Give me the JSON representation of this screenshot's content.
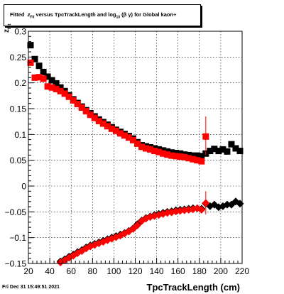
{
  "title": {
    "prefix": "Fitted",
    "variable": "z",
    "variable_sub": "Fit",
    "middle": "versus TpcTrackLength and log",
    "log_sub": "10",
    "suffix": "(β  γ) for Global kaon+"
  },
  "footer": "Fri Dec 31 15:49:51 2021",
  "chart_data": {
    "type": "scatter",
    "xlabel": "TpcTrackLength (cm)",
    "ylabel": "z",
    "ylabel_sub": "Fit",
    "xlim": [
      20,
      220
    ],
    "ylim": [
      -0.15,
      0.3
    ],
    "xticks": [
      20,
      40,
      60,
      80,
      100,
      120,
      140,
      160,
      180,
      200,
      220
    ],
    "yticks": [
      -0.15,
      -0.1,
      -0.05,
      0,
      0.05,
      0.1,
      0.15,
      0.2,
      0.25,
      0.3
    ],
    "ytick_labels": [
      "−0.15",
      "−0.1",
      "−0.05",
      "0",
      "0.05",
      "0.1",
      "0.15",
      "0.2",
      "0.25",
      "0.3"
    ],
    "grid": true,
    "colors": {
      "black_series": "#000000",
      "red_series": "#ff0000"
    },
    "series": [
      {
        "marker": "square",
        "color": "#000000",
        "points": [
          [
            22,
            0.273
          ],
          [
            26,
            0.246
          ],
          [
            30,
            0.233
          ],
          [
            34,
            0.221
          ],
          [
            38,
            0.212
          ],
          [
            42,
            0.205
          ],
          [
            46,
            0.199
          ],
          [
            50,
            0.191
          ],
          [
            54,
            0.184
          ],
          [
            58,
            0.176
          ],
          [
            62,
            0.168
          ],
          [
            66,
            0.161
          ],
          [
            70,
            0.154
          ],
          [
            74,
            0.147
          ],
          [
            78,
            0.141
          ],
          [
            82,
            0.135
          ],
          [
            86,
            0.129
          ],
          [
            90,
            0.124
          ],
          [
            94,
            0.119
          ],
          [
            98,
            0.114
          ],
          [
            102,
            0.109
          ],
          [
            106,
            0.105
          ],
          [
            110,
            0.101
          ],
          [
            114,
            0.097
          ],
          [
            118,
            0.092
          ],
          [
            122,
            0.085
          ],
          [
            126,
            0.079
          ],
          [
            130,
            0.077
          ],
          [
            134,
            0.075
          ],
          [
            138,
            0.073
          ],
          [
            142,
            0.071
          ],
          [
            146,
            0.069
          ],
          [
            150,
            0.067
          ],
          [
            154,
            0.065
          ],
          [
            158,
            0.064
          ],
          [
            162,
            0.063
          ],
          [
            166,
            0.061
          ],
          [
            170,
            0.06
          ],
          [
            174,
            0.059
          ],
          [
            178,
            0.059
          ],
          [
            182,
            0.058
          ],
          [
            186,
            0.063
          ],
          [
            190,
            0.068
          ],
          [
            194,
            0.072
          ],
          [
            198,
            0.068
          ],
          [
            202,
            0.071
          ],
          [
            206,
            0.067
          ],
          [
            210,
            0.081
          ],
          [
            214,
            0.073
          ],
          [
            218,
            0.068
          ]
        ]
      },
      {
        "marker": "square",
        "color": "#ff0000",
        "points": [
          [
            22,
            0.239
          ],
          [
            26,
            0.21
          ],
          [
            30,
            0.211
          ],
          [
            34,
            0.208
          ],
          [
            38,
            0.193
          ],
          [
            42,
            0.191
          ],
          [
            46,
            0.188
          ],
          [
            50,
            0.184
          ],
          [
            54,
            0.179
          ],
          [
            58,
            0.173
          ],
          [
            62,
            0.166
          ],
          [
            66,
            0.159
          ],
          [
            70,
            0.152
          ],
          [
            74,
            0.145
          ],
          [
            78,
            0.138
          ],
          [
            82,
            0.132
          ],
          [
            86,
            0.126
          ],
          [
            90,
            0.121
          ],
          [
            94,
            0.116
          ],
          [
            98,
            0.111
          ],
          [
            102,
            0.107
          ],
          [
            106,
            0.102
          ],
          [
            110,
            0.098
          ],
          [
            114,
            0.094
          ],
          [
            118,
            0.089
          ],
          [
            122,
            0.082
          ],
          [
            126,
            0.076
          ],
          [
            130,
            0.073
          ],
          [
            134,
            0.071
          ],
          [
            138,
            0.068
          ],
          [
            142,
            0.066
          ],
          [
            146,
            0.063
          ],
          [
            150,
            0.061
          ],
          [
            154,
            0.059
          ],
          [
            158,
            0.058
          ],
          [
            162,
            0.057
          ],
          [
            166,
            0.056
          ],
          [
            170,
            0.054
          ],
          [
            174,
            0.052
          ],
          [
            178,
            0.05
          ],
          [
            182,
            0.048
          ],
          [
            186,
            0.096
          ]
        ],
        "error_point": {
          "x": 186,
          "y": 0.096,
          "ylo": 0.06,
          "yhi": 0.135
        }
      },
      {
        "marker": "diamond",
        "color": "#000000",
        "points": [
          [
            50,
            -0.146
          ],
          [
            54,
            -0.142
          ],
          [
            58,
            -0.137
          ],
          [
            62,
            -0.133
          ],
          [
            66,
            -0.128
          ],
          [
            70,
            -0.124
          ],
          [
            74,
            -0.119
          ],
          [
            78,
            -0.115
          ],
          [
            82,
            -0.112
          ],
          [
            86,
            -0.109
          ],
          [
            90,
            -0.106
          ],
          [
            94,
            -0.103
          ],
          [
            98,
            -0.1
          ],
          [
            102,
            -0.097
          ],
          [
            106,
            -0.094
          ],
          [
            110,
            -0.091
          ],
          [
            114,
            -0.087
          ],
          [
            118,
            -0.082
          ],
          [
            122,
            -0.074
          ],
          [
            126,
            -0.067
          ],
          [
            130,
            -0.062
          ],
          [
            134,
            -0.059
          ],
          [
            138,
            -0.056
          ],
          [
            142,
            -0.054
          ],
          [
            146,
            -0.052
          ],
          [
            150,
            -0.05
          ],
          [
            154,
            -0.049
          ],
          [
            158,
            -0.047
          ],
          [
            162,
            -0.046
          ],
          [
            166,
            -0.045
          ],
          [
            170,
            -0.044
          ],
          [
            174,
            -0.043
          ],
          [
            178,
            -0.043
          ],
          [
            182,
            -0.044
          ],
          [
            186,
            -0.034
          ],
          [
            190,
            -0.039
          ],
          [
            194,
            -0.036
          ],
          [
            198,
            -0.041
          ],
          [
            202,
            -0.039
          ],
          [
            206,
            -0.036
          ],
          [
            210,
            -0.036
          ],
          [
            214,
            -0.03
          ],
          [
            218,
            -0.034
          ]
        ]
      },
      {
        "marker": "diamond",
        "color": "#ff0000",
        "points": [
          [
            50,
            -0.148
          ],
          [
            54,
            -0.144
          ],
          [
            58,
            -0.139
          ],
          [
            62,
            -0.135
          ],
          [
            66,
            -0.13
          ],
          [
            70,
            -0.126
          ],
          [
            74,
            -0.121
          ],
          [
            78,
            -0.117
          ],
          [
            82,
            -0.114
          ],
          [
            86,
            -0.111
          ],
          [
            90,
            -0.108
          ],
          [
            94,
            -0.105
          ],
          [
            98,
            -0.102
          ],
          [
            102,
            -0.099
          ],
          [
            106,
            -0.096
          ],
          [
            110,
            -0.092
          ],
          [
            114,
            -0.088
          ],
          [
            118,
            -0.083
          ],
          [
            122,
            -0.076
          ],
          [
            126,
            -0.068
          ],
          [
            130,
            -0.063
          ],
          [
            134,
            -0.06
          ],
          [
            138,
            -0.058
          ],
          [
            142,
            -0.056
          ],
          [
            146,
            -0.054
          ],
          [
            150,
            -0.052
          ],
          [
            154,
            -0.051
          ],
          [
            158,
            -0.049
          ],
          [
            162,
            -0.048
          ],
          [
            166,
            -0.047
          ],
          [
            170,
            -0.046
          ],
          [
            174,
            -0.045
          ],
          [
            178,
            -0.043
          ],
          [
            182,
            -0.046
          ],
          [
            186,
            -0.033
          ]
        ],
        "error_point": {
          "x": 186,
          "y": -0.033,
          "ylo": -0.055,
          "yhi": -0.01
        }
      }
    ]
  }
}
